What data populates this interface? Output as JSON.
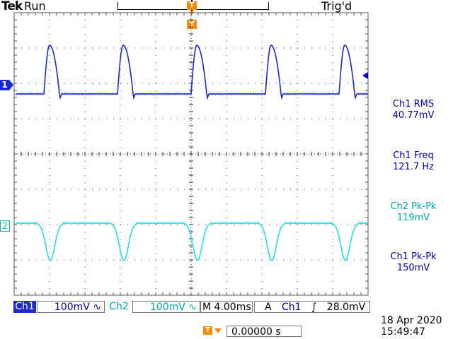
{
  "top_bar": {
    "brand": "Tek",
    "run_state": "Run",
    "trigger_status": "Trig'd",
    "trigger_marker": "T"
  },
  "channels": {
    "ch1_marker": "1",
    "ch2_marker": "2",
    "ch1_color": "#0000b8",
    "ch2_color": "#00c8d8"
  },
  "measurements": [
    {
      "label": "Ch1 RMS",
      "value": "40.77mV",
      "channel": "ch1"
    },
    {
      "label": "Ch1 Freq",
      "value": "121.7 Hz",
      "channel": "ch1"
    },
    {
      "label": "Ch2 Pk-Pk",
      "value": "119mV",
      "channel": "ch2"
    },
    {
      "label": "Ch1 Pk-Pk",
      "value": "150mV",
      "channel": "ch1"
    }
  ],
  "status_bar": {
    "ch1_label": "Ch1",
    "ch1_scale": "100mV",
    "ch1_coupling_icon": "ac-coupling-icon",
    "ch2_label": "Ch2",
    "ch2_scale": "100mV",
    "ch2_coupling_icon": "ac-coupling-icon",
    "timebase": "M 4.00ms",
    "trigger_mode": "A",
    "trigger_source": "Ch1",
    "trigger_slope_icon": "rising-edge-icon",
    "trigger_level": "28.0mV"
  },
  "horizontal_position": {
    "marker": "T",
    "value": "0.00000 s"
  },
  "datetime": {
    "date": "18 Apr 2020",
    "time": "15:49:47"
  },
  "waveform_data": {
    "ch1_pulse_times": [
      71,
      175,
      279,
      384,
      488
    ],
    "ch2_dip_times": [
      71,
      175,
      279,
      384,
      488
    ]
  }
}
